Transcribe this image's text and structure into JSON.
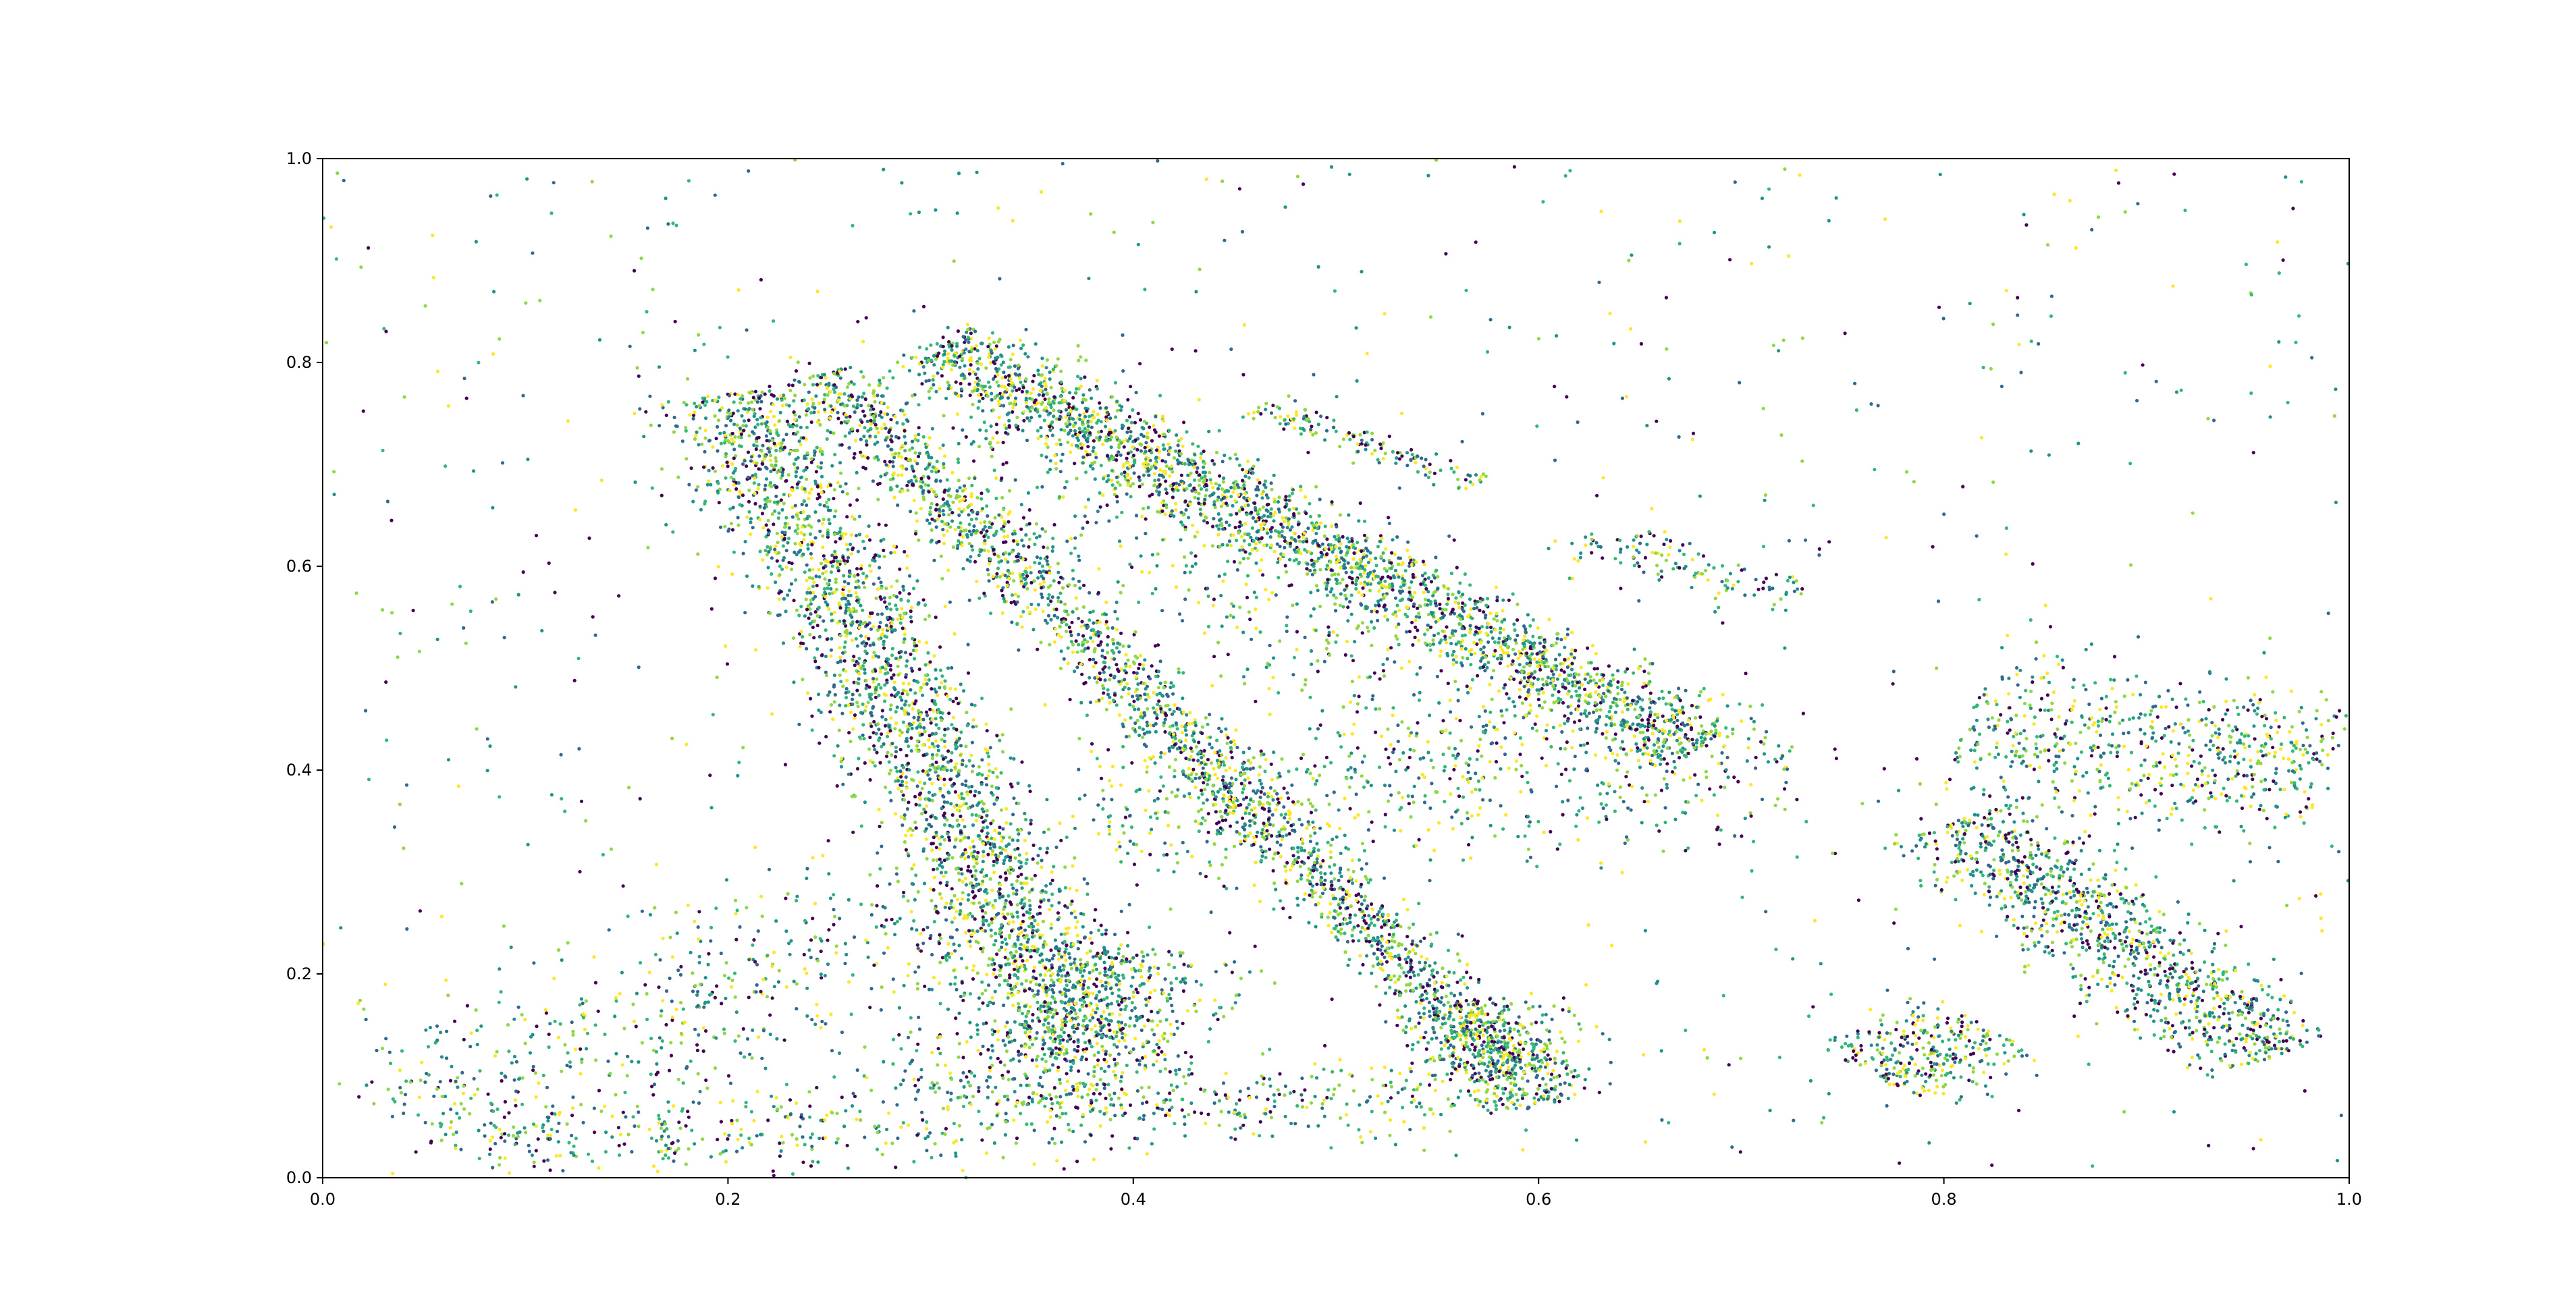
{
  "chart_data": {
    "type": "scatter",
    "title": "",
    "xlabel": "",
    "ylabel": "",
    "xlim": [
      0.0,
      1.0
    ],
    "ylim": [
      0.0,
      1.0
    ],
    "grid": false,
    "legend": "none",
    "colormap": "viridis",
    "palette": [
      "#440154",
      "#31688e",
      "#21918c",
      "#35b779",
      "#90d743",
      "#fde725"
    ],
    "xticks": [
      {
        "value": 0.0,
        "label": "0.0"
      },
      {
        "value": 0.2,
        "label": "0.2"
      },
      {
        "value": 0.4,
        "label": "0.4"
      },
      {
        "value": 0.6,
        "label": "0.6"
      },
      {
        "value": 0.8,
        "label": "0.8"
      },
      {
        "value": 1.0,
        "label": "1.0"
      }
    ],
    "yticks": [
      {
        "value": 0.0,
        "label": "0.0"
      },
      {
        "value": 0.2,
        "label": "0.2"
      },
      {
        "value": 0.4,
        "label": "0.4"
      },
      {
        "value": 0.6,
        "label": "0.6"
      },
      {
        "value": 0.8,
        "label": "0.8"
      },
      {
        "value": 1.0,
        "label": "1.0"
      }
    ],
    "series": [
      {
        "structure": "band",
        "from": [
          0.2,
          0.77
        ],
        "to": [
          0.38,
          0.12
        ],
        "width": 0.04,
        "points": 2600
      },
      {
        "structure": "band",
        "from": [
          0.245,
          0.79
        ],
        "to": [
          0.59,
          0.1
        ],
        "width": 0.024,
        "points": 2000
      },
      {
        "structure": "band",
        "from": [
          0.3,
          0.82
        ],
        "to": [
          0.68,
          0.42
        ],
        "width": 0.03,
        "points": 2300
      },
      {
        "structure": "band",
        "from": [
          0.28,
          0.79
        ],
        "to": [
          0.6,
          0.42
        ],
        "width": 0.08,
        "points": 650
      },
      {
        "structure": "band",
        "from": [
          0.35,
          0.07
        ],
        "to": [
          0.39,
          0.23
        ],
        "width": 0.07,
        "points": 700
      },
      {
        "structure": "band",
        "from": [
          0.56,
          0.17
        ],
        "to": [
          0.6,
          0.07
        ],
        "width": 0.04,
        "points": 500
      },
      {
        "structure": "band",
        "from": [
          0.805,
          0.35
        ],
        "to": [
          0.965,
          0.12
        ],
        "width": 0.04,
        "points": 1100
      },
      {
        "structure": "band",
        "from": [
          0.765,
          0.1
        ],
        "to": [
          0.82,
          0.15
        ],
        "width": 0.04,
        "points": 300
      },
      {
        "structure": "band",
        "from": [
          0.81,
          0.44
        ],
        "to": [
          0.99,
          0.4
        ],
        "width": 0.07,
        "points": 650
      },
      {
        "structure": "band",
        "from": [
          0.04,
          0.05
        ],
        "to": [
          0.32,
          0.28
        ],
        "width": 0.08,
        "points": 550
      },
      {
        "structure": "band",
        "from": [
          0.08,
          0.04
        ],
        "to": [
          0.55,
          0.08
        ],
        "width": 0.04,
        "points": 550
      },
      {
        "structure": "band",
        "from": [
          0.38,
          0.35
        ],
        "to": [
          0.72,
          0.42
        ],
        "width": 0.08,
        "points": 600
      },
      {
        "structure": "band",
        "from": [
          0.46,
          0.76
        ],
        "to": [
          0.57,
          0.68
        ],
        "width": 0.012,
        "points": 140
      },
      {
        "structure": "band",
        "from": [
          0.62,
          0.63
        ],
        "to": [
          0.73,
          0.57
        ],
        "width": 0.02,
        "points": 120
      },
      {
        "structure": "band",
        "from": [
          0.0,
          0.0
        ],
        "to": [
          1.0,
          1.0
        ],
        "width": 0.0,
        "points": 900,
        "uniform": true
      }
    ]
  }
}
